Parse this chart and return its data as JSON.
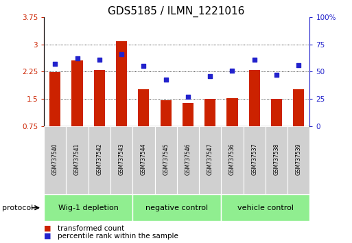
{
  "title": "GDS5185 / ILMN_1221016",
  "samples": [
    "GSM737540",
    "GSM737541",
    "GSM737542",
    "GSM737543",
    "GSM737544",
    "GSM737545",
    "GSM737546",
    "GSM737547",
    "GSM737536",
    "GSM737537",
    "GSM737538",
    "GSM737539"
  ],
  "bar_values": [
    2.24,
    2.56,
    2.3,
    3.08,
    1.76,
    1.47,
    1.4,
    1.5,
    1.53,
    2.3,
    1.5,
    1.76
  ],
  "dot_values": [
    57,
    62,
    61,
    66,
    55,
    43,
    27,
    46,
    51,
    61,
    47,
    56
  ],
  "groups": [
    {
      "label": "Wig-1 depletion",
      "start": 0,
      "end": 4
    },
    {
      "label": "negative control",
      "start": 4,
      "end": 8
    },
    {
      "label": "vehicle control",
      "start": 8,
      "end": 12
    }
  ],
  "ylim_left": [
    0.75,
    3.75
  ],
  "ylim_right": [
    0,
    100
  ],
  "yticks_left": [
    0.75,
    1.5,
    2.25,
    3.0,
    3.75
  ],
  "yticks_right": [
    0,
    25,
    50,
    75,
    100
  ],
  "ytick_labels_left": [
    "0.75",
    "1.5",
    "2.25",
    "3",
    "3.75"
  ],
  "ytick_labels_right": [
    "0",
    "25",
    "50",
    "75",
    "100%"
  ],
  "grid_lines": [
    1.5,
    2.25,
    3.0
  ],
  "bar_color": "#cc2200",
  "dot_color": "#2222cc",
  "bg_color": "#ffffff",
  "sample_box_color": "#d0d0d0",
  "group_color": "#90ee90",
  "group_border_color": "#ffffff",
  "protocol_label": "protocol",
  "legend_bar_label": "transformed count",
  "legend_dot_label": "percentile rank within the sample",
  "title_fontsize": 11,
  "tick_fontsize": 7.5,
  "sample_fontsize": 5.5,
  "group_fontsize": 8,
  "legend_fontsize": 7.5,
  "protocol_fontsize": 8
}
